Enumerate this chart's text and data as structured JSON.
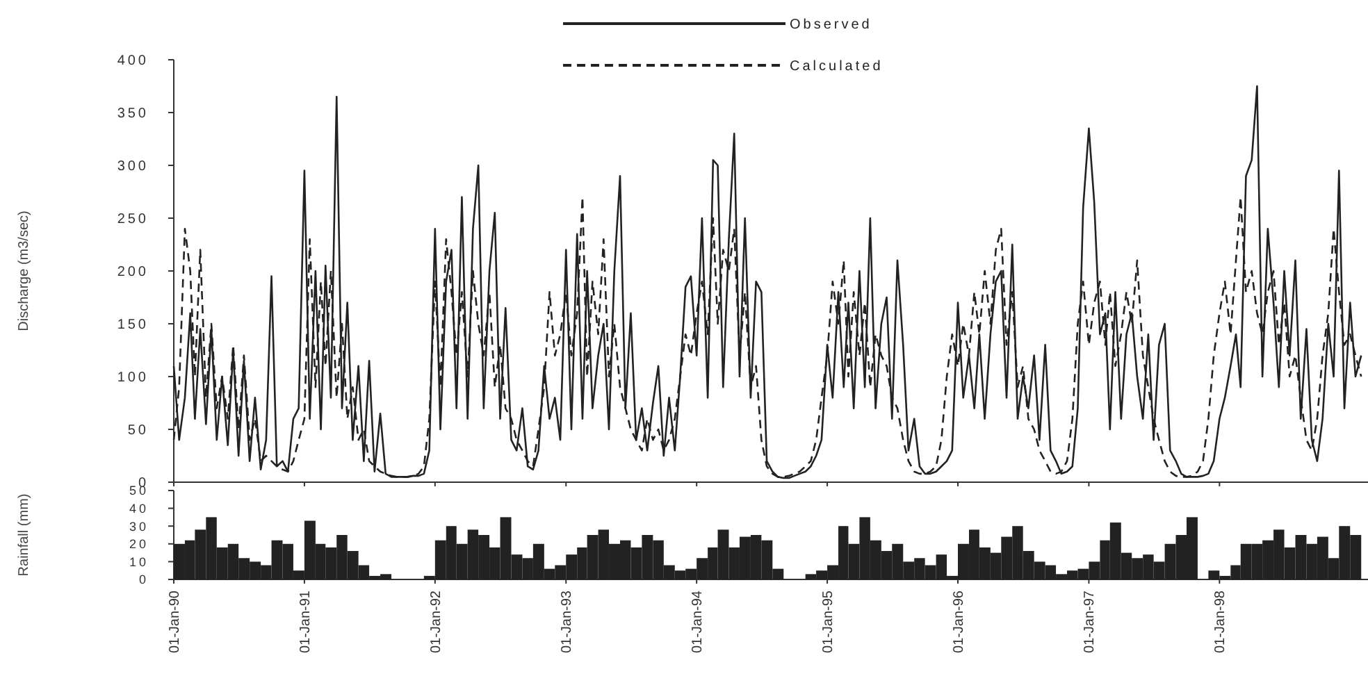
{
  "chart_data": [
    {
      "type": "line",
      "ylabel": "Discharge (m3/sec)",
      "xlim": [
        "1990-01-01",
        "1999-02-20"
      ],
      "ylim": [
        0,
        400
      ],
      "yticks": [
        0,
        50,
        100,
        150,
        200,
        250,
        300,
        350,
        400
      ],
      "tick_labels": "y",
      "legend": "top",
      "grid": false,
      "xticks": [
        {
          "value": "1990-01-01",
          "label": null
        },
        {
          "value": "1991-01-01",
          "label": null
        },
        {
          "value": "1992-01-01",
          "label": null
        },
        {
          "value": "1993-01-01",
          "label": null
        },
        {
          "value": "1994-01-01",
          "label": null
        },
        {
          "value": "1995-01-01",
          "label": null
        },
        {
          "value": "1996-01-01",
          "label": null
        },
        {
          "value": "1997-01-01",
          "label": null
        },
        {
          "value": "1998-01-01",
          "label": null
        }
      ],
      "x": [
        "1990-01-01",
        "1990-01-16",
        "1990-02-01",
        "1990-02-16",
        "1990-03-01",
        "1990-03-16",
        "1990-04-01",
        "1990-04-16",
        "1990-05-01",
        "1990-05-16",
        "1990-06-01",
        "1990-06-16",
        "1990-07-01",
        "1990-07-16",
        "1990-08-01",
        "1990-08-16",
        "1990-09-01",
        "1990-09-16",
        "1990-10-01",
        "1990-10-16",
        "1990-11-01",
        "1990-11-16",
        "1990-12-01",
        "1990-12-16",
        "1991-01-01",
        "1991-01-16",
        "1991-02-01",
        "1991-02-16",
        "1991-03-01",
        "1991-03-16",
        "1991-04-01",
        "1991-04-16",
        "1991-05-01",
        "1991-05-16",
        "1991-06-01",
        "1991-06-16",
        "1991-07-01",
        "1991-07-16",
        "1991-08-01",
        "1991-08-16",
        "1991-09-01",
        "1991-09-16",
        "1991-10-01",
        "1991-10-16",
        "1991-11-01",
        "1991-11-16",
        "1991-12-01",
        "1991-12-16",
        "1992-01-01",
        "1992-01-16",
        "1992-02-01",
        "1992-02-16",
        "1992-03-01",
        "1992-03-16",
        "1992-04-01",
        "1992-04-16",
        "1992-05-01",
        "1992-05-16",
        "1992-06-01",
        "1992-06-16",
        "1992-07-01",
        "1992-07-16",
        "1992-08-01",
        "1992-08-16",
        "1992-09-01",
        "1992-09-16",
        "1992-10-01",
        "1992-10-16",
        "1992-11-01",
        "1992-11-16",
        "1992-12-01",
        "1992-12-16",
        "1993-01-01",
        "1993-01-16",
        "1993-02-01",
        "1993-02-16",
        "1993-03-01",
        "1993-03-16",
        "1993-04-01",
        "1993-04-16",
        "1993-05-01",
        "1993-05-16",
        "1993-06-01",
        "1993-06-16",
        "1993-07-01",
        "1993-07-16",
        "1993-08-01",
        "1993-08-16",
        "1993-09-01",
        "1993-09-16",
        "1993-10-01",
        "1993-10-16",
        "1993-11-01",
        "1993-11-16",
        "1993-12-01",
        "1993-12-16",
        "1994-01-01",
        "1994-01-16",
        "1994-02-01",
        "1994-02-16",
        "1994-03-01",
        "1994-03-16",
        "1994-04-01",
        "1994-04-16",
        "1994-05-01",
        "1994-05-16",
        "1994-06-01",
        "1994-06-16",
        "1994-07-01",
        "1994-07-16",
        "1994-08-01",
        "1994-08-16",
        "1994-09-01",
        "1994-09-16",
        "1994-10-01",
        "1994-10-16",
        "1994-11-01",
        "1994-11-16",
        "1994-12-01",
        "1994-12-16",
        "1995-01-01",
        "1995-01-16",
        "1995-02-01",
        "1995-02-16",
        "1995-03-01",
        "1995-03-16",
        "1995-04-01",
        "1995-04-16",
        "1995-05-01",
        "1995-05-16",
        "1995-06-01",
        "1995-06-16",
        "1995-07-01",
        "1995-07-16",
        "1995-08-01",
        "1995-08-16",
        "1995-09-01",
        "1995-09-16",
        "1995-10-01",
        "1995-10-16",
        "1995-11-01",
        "1995-11-16",
        "1995-12-01",
        "1995-12-16",
        "1996-01-01",
        "1996-01-16",
        "1996-02-01",
        "1996-02-16",
        "1996-03-01",
        "1996-03-16",
        "1996-04-01",
        "1996-04-16",
        "1996-05-01",
        "1996-05-16",
        "1996-06-01",
        "1996-06-16",
        "1996-07-01",
        "1996-07-16",
        "1996-08-01",
        "1996-08-16",
        "1996-09-01",
        "1996-09-16",
        "1996-10-01",
        "1996-10-16",
        "1996-11-01",
        "1996-11-16",
        "1996-12-01",
        "1996-12-16",
        "1997-01-01",
        "1997-01-16",
        "1997-02-01",
        "1997-02-16",
        "1997-03-01",
        "1997-03-16",
        "1997-04-01",
        "1997-04-16",
        "1997-05-01",
        "1997-05-16",
        "1997-06-01",
        "1997-06-16",
        "1997-07-01",
        "1997-07-16",
        "1997-08-01",
        "1997-08-16",
        "1997-09-01",
        "1997-09-16",
        "1997-10-01",
        "1997-10-16",
        "1997-11-01",
        "1997-11-16",
        "1997-12-01",
        "1997-12-16",
        "1998-01-01",
        "1998-01-16",
        "1998-02-01",
        "1998-02-16",
        "1998-03-01",
        "1998-03-16",
        "1998-04-01",
        "1998-04-16",
        "1998-05-01",
        "1998-05-16",
        "1998-06-01",
        "1998-06-16",
        "1998-07-01",
        "1998-07-16",
        "1998-08-01",
        "1998-08-16",
        "1998-09-01",
        "1998-09-16",
        "1998-10-01",
        "1998-10-16",
        "1998-11-01",
        "1998-11-16",
        "1998-12-01",
        "1998-12-16",
        "1999-01-01",
        "1999-01-16",
        "1999-02-01"
      ],
      "series": [
        {
          "name": "Observed",
          "color": "#222222",
          "line_style": "solid",
          "values": [
            110,
            40,
            80,
            160,
            60,
            145,
            55,
            145,
            40,
            100,
            35,
            125,
            25,
            115,
            20,
            80,
            12,
            40,
            195,
            15,
            20,
            10,
            60,
            70,
            295,
            60,
            200,
            50,
            205,
            80,
            365,
            70,
            170,
            40,
            110,
            20,
            115,
            10,
            65,
            8,
            5,
            5,
            5,
            5,
            6,
            6,
            8,
            30,
            240,
            50,
            190,
            220,
            70,
            270,
            60,
            240,
            300,
            70,
            200,
            255,
            60,
            165,
            40,
            30,
            70,
            15,
            12,
            30,
            110,
            60,
            80,
            40,
            220,
            50,
            235,
            60,
            200,
            70,
            120,
            150,
            50,
            200,
            290,
            70,
            160,
            40,
            70,
            30,
            75,
            110,
            25,
            80,
            30,
            100,
            185,
            195,
            120,
            250,
            80,
            305,
            300,
            90,
            230,
            330,
            100,
            250,
            80,
            190,
            180,
            20,
            10,
            5,
            4,
            4,
            6,
            8,
            10,
            15,
            25,
            40,
            130,
            80,
            180,
            90,
            170,
            70,
            200,
            90,
            250,
            70,
            150,
            175,
            60,
            210,
            130,
            30,
            60,
            15,
            8,
            8,
            10,
            15,
            20,
            30,
            170,
            80,
            120,
            70,
            140,
            60,
            140,
            190,
            200,
            80,
            225,
            60,
            100,
            70,
            120,
            40,
            130,
            30,
            20,
            8,
            10,
            15,
            70,
            260,
            335,
            265,
            140,
            160,
            50,
            180,
            60,
            140,
            160,
            100,
            60,
            140,
            40,
            130,
            150,
            30,
            20,
            8,
            5,
            5,
            5,
            6,
            8,
            20,
            60,
            80,
            110,
            140,
            90,
            290,
            305,
            375,
            100,
            240,
            170,
            90,
            200,
            120,
            210,
            60,
            145,
            40,
            20,
            60,
            150,
            100,
            295,
            70,
            170,
            100,
            120
          ]
        },
        {
          "name": "Calculated",
          "color": "#222222",
          "line_style": "dashed",
          "values": [
            40,
            90,
            240,
            200,
            100,
            220,
            80,
            150,
            70,
            100,
            60,
            130,
            50,
            120,
            40,
            60,
            20,
            25,
            20,
            15,
            12,
            10,
            20,
            40,
            60,
            230,
            90,
            190,
            110,
            200,
            80,
            150,
            60,
            90,
            40,
            50,
            20,
            15,
            10,
            8,
            6,
            5,
            5,
            5,
            6,
            8,
            15,
            60,
            190,
            90,
            230,
            180,
            120,
            180,
            100,
            200,
            150,
            120,
            180,
            90,
            130,
            70,
            60,
            40,
            30,
            20,
            15,
            50,
            90,
            180,
            120,
            140,
            180,
            120,
            160,
            270,
            100,
            190,
            140,
            230,
            100,
            150,
            90,
            70,
            50,
            40,
            30,
            60,
            40,
            50,
            30,
            40,
            60,
            100,
            140,
            120,
            160,
            190,
            140,
            250,
            150,
            220,
            200,
            240,
            120,
            180,
            90,
            110,
            40,
            15,
            8,
            5,
            5,
            6,
            8,
            10,
            15,
            20,
            40,
            80,
            120,
            190,
            150,
            210,
            100,
            180,
            120,
            170,
            90,
            140,
            120,
            110,
            80,
            70,
            40,
            20,
            10,
            8,
            8,
            10,
            15,
            40,
            100,
            140,
            110,
            150,
            120,
            180,
            140,
            200,
            150,
            220,
            240,
            130,
            180,
            90,
            110,
            60,
            50,
            30,
            20,
            10,
            8,
            10,
            20,
            60,
            150,
            190,
            130,
            170,
            190,
            130,
            180,
            110,
            140,
            180,
            150,
            210,
            120,
            90,
            60,
            40,
            20,
            10,
            6,
            5,
            5,
            6,
            10,
            20,
            60,
            120,
            160,
            190,
            140,
            210,
            270,
            180,
            200,
            160,
            140,
            180,
            200,
            130,
            170,
            100,
            120,
            80,
            40,
            30,
            60,
            120,
            160,
            240,
            180,
            130,
            140,
            120,
            100
          ]
        }
      ]
    },
    {
      "type": "bar",
      "ylabel": "Rainfall (mm)",
      "xlim": [
        "1990-01-01",
        "1999-02-20"
      ],
      "ylim": [
        0,
        50
      ],
      "yticks": [
        0,
        10,
        20,
        30,
        40,
        50
      ],
      "grid": false,
      "color": "#222222",
      "xticks": [
        {
          "value": "1990-01-01",
          "label": "01-Jan-90"
        },
        {
          "value": "1991-01-01",
          "label": "01-Jan-91"
        },
        {
          "value": "1992-01-01",
          "label": "01-Jan-92"
        },
        {
          "value": "1993-01-01",
          "label": "01-Jan-93"
        },
        {
          "value": "1994-01-01",
          "label": "01-Jan-94"
        },
        {
          "value": "1995-01-01",
          "label": "01-Jan-95"
        },
        {
          "value": "1996-01-01",
          "label": "01-Jan-96"
        },
        {
          "value": "1997-01-01",
          "label": "01-Jan-97"
        },
        {
          "value": "1998-01-01",
          "label": "01-Jan-98"
        }
      ],
      "x": [
        "1990-01",
        "1990-02",
        "1990-03",
        "1990-04",
        "1990-05",
        "1990-06",
        "1990-07",
        "1990-08",
        "1990-09",
        "1990-10",
        "1990-11",
        "1990-12",
        "1991-01",
        "1991-02",
        "1991-03",
        "1991-04",
        "1991-05",
        "1991-06",
        "1991-07",
        "1991-08",
        "1991-09",
        "1991-10",
        "1991-11",
        "1991-12",
        "1992-01",
        "1992-02",
        "1992-03",
        "1992-04",
        "1992-05",
        "1992-06",
        "1992-07",
        "1992-08",
        "1992-09",
        "1992-10",
        "1992-11",
        "1992-12",
        "1993-01",
        "1993-02",
        "1993-03",
        "1993-04",
        "1993-05",
        "1993-06",
        "1993-07",
        "1993-08",
        "1993-09",
        "1993-10",
        "1993-11",
        "1993-12",
        "1994-01",
        "1994-02",
        "1994-03",
        "1994-04",
        "1994-05",
        "1994-06",
        "1994-07",
        "1994-08",
        "1994-09",
        "1994-10",
        "1994-11",
        "1994-12",
        "1995-01",
        "1995-02",
        "1995-03",
        "1995-04",
        "1995-05",
        "1995-06",
        "1995-07",
        "1995-08",
        "1995-09",
        "1995-10",
        "1995-11",
        "1995-12",
        "1996-01",
        "1996-02",
        "1996-03",
        "1996-04",
        "1996-05",
        "1996-06",
        "1996-07",
        "1996-08",
        "1996-09",
        "1996-10",
        "1996-11",
        "1996-12",
        "1997-01",
        "1997-02",
        "1997-03",
        "1997-04",
        "1997-05",
        "1997-06",
        "1997-07",
        "1997-08",
        "1997-09",
        "1997-10",
        "1997-11",
        "1997-12",
        "1998-01",
        "1998-02",
        "1998-03",
        "1998-04",
        "1998-05",
        "1998-06",
        "1998-07",
        "1998-08",
        "1998-09",
        "1998-10",
        "1998-11",
        "1998-12",
        "1999-01"
      ],
      "values": [
        20,
        22,
        28,
        35,
        18,
        20,
        12,
        10,
        8,
        22,
        20,
        5,
        33,
        20,
        18,
        25,
        16,
        8,
        2,
        3,
        0,
        0,
        0,
        2,
        22,
        30,
        20,
        28,
        25,
        18,
        35,
        14,
        12,
        20,
        6,
        8,
        14,
        18,
        25,
        28,
        20,
        22,
        18,
        25,
        22,
        8,
        5,
        6,
        12,
        18,
        28,
        18,
        24,
        25,
        22,
        6,
        0,
        0,
        3,
        5,
        8,
        30,
        20,
        35,
        22,
        16,
        20,
        10,
        12,
        8,
        14,
        2,
        20,
        28,
        18,
        15,
        24,
        30,
        16,
        10,
        8,
        3,
        5,
        6,
        10,
        22,
        32,
        15,
        12,
        14,
        10,
        20,
        25,
        35,
        0,
        5,
        2,
        8,
        20,
        20,
        22,
        28,
        18,
        25,
        20,
        24,
        12,
        30,
        25
      ]
    }
  ]
}
